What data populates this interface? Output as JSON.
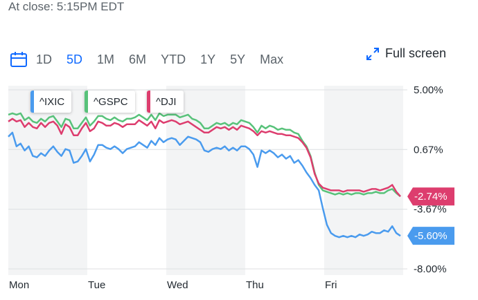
{
  "header": {
    "at_close": "At close: 5:15PM EDT"
  },
  "toolbar": {
    "calendar_icon": "calendar-icon",
    "ranges": [
      "1D",
      "5D",
      "1M",
      "6M",
      "YTD",
      "1Y",
      "5Y",
      "Max"
    ],
    "active_range": "5D",
    "fullscreen_label": "Full screen",
    "fullscreen_icon": "expand-icon"
  },
  "colors": {
    "ixic": "#4a9bee",
    "gspc": "#58c27a",
    "dji": "#dd3d6e",
    "active": "#0f69ff"
  },
  "chart_data": {
    "type": "line",
    "x_labels": [
      "Mon",
      "Tue",
      "Wed",
      "Thu",
      "Fri"
    ],
    "y_ticks": [
      "5.00%",
      "0.67%",
      "-3.67%",
      "-8.00%"
    ],
    "ylim": [
      -8.0,
      5.0
    ],
    "grid": true,
    "legend_position": "top-left",
    "series": [
      {
        "name": "^IXIC",
        "last_label": "-5.60%",
        "values": [
          1.6,
          1.9,
          0.9,
          1.1,
          0.6,
          0.9,
          0.2,
          0.1,
          0.4,
          0.2,
          0.6,
          0.9,
          0.5,
          0.2,
          0.7,
          0.6,
          -0.3,
          -0.2,
          0.2,
          0.7,
          -0.2,
          0.3,
          1.0,
          1.0,
          0.8,
          0.7,
          0.9,
          0.7,
          0.4,
          0.7,
          0.8,
          0.9,
          1.2,
          1.0,
          0.8,
          1.3,
          1.0,
          1.5,
          1.2,
          1.4,
          1.5,
          1.4,
          1.0,
          1.3,
          1.6,
          1.5,
          1.4,
          1.2,
          0.6,
          0.5,
          0.7,
          0.8,
          0.7,
          0.9,
          0.6,
          0.8,
          0.6,
          0.9,
          0.9,
          0.7,
          0.3,
          -0.6,
          0.6,
          0.4,
          0.6,
          0.4,
          0.1,
          0.3,
          0.0,
          0.2,
          -0.3,
          -0.1,
          -0.5,
          -1.0,
          -1.4,
          -1.9,
          -2.3,
          -3.6,
          -4.8,
          -5.4,
          -5.6,
          -5.7,
          -5.6,
          -5.7,
          -5.6,
          -5.7,
          -5.5,
          -5.6,
          -5.5,
          -5.3,
          -5.4,
          -5.4,
          -5.2,
          -5.3,
          -4.9,
          -5.4,
          -5.6
        ]
      },
      {
        "name": "^GSPC",
        "last_label": "-2.74%",
        "values": [
          3.2,
          3.3,
          3.2,
          3.3,
          2.8,
          3.0,
          2.7,
          2.6,
          2.9,
          2.7,
          3.0,
          3.1,
          2.7,
          2.3,
          2.9,
          2.8,
          2.2,
          2.2,
          2.6,
          3.0,
          2.4,
          2.7,
          3.1,
          3.1,
          2.9,
          2.8,
          3.0,
          2.8,
          2.7,
          2.9,
          2.9,
          3.0,
          3.2,
          3.0,
          2.8,
          3.2,
          2.8,
          3.3,
          3.1,
          3.2,
          3.2,
          3.2,
          3.0,
          3.1,
          3.2,
          2.9,
          2.8,
          2.6,
          2.2,
          2.2,
          2.4,
          2.6,
          2.5,
          2.6,
          2.4,
          2.6,
          2.5,
          2.8,
          2.7,
          2.6,
          2.3,
          1.9,
          2.4,
          2.2,
          2.4,
          2.3,
          2.1,
          2.2,
          2.1,
          2.1,
          1.9,
          1.8,
          1.3,
          0.9,
          0.2,
          -1.0,
          -1.9,
          -2.3,
          -2.4,
          -2.5,
          -2.6,
          -2.5,
          -2.6,
          -2.5,
          -2.6,
          -2.5,
          -2.5,
          -2.6,
          -2.5,
          -2.5,
          -2.4,
          -2.5,
          -2.5,
          -2.3,
          -2.2,
          -2.5,
          -2.74
        ]
      },
      {
        "name": "^DJI",
        "last_label": "-2.74%",
        "values": [
          2.7,
          2.9,
          2.7,
          2.8,
          2.3,
          2.6,
          2.3,
          2.2,
          2.6,
          2.3,
          2.6,
          2.7,
          2.4,
          1.8,
          2.5,
          2.3,
          1.7,
          1.7,
          2.2,
          2.6,
          2.0,
          2.2,
          2.7,
          2.6,
          2.4,
          2.4,
          2.6,
          2.5,
          2.3,
          2.5,
          2.5,
          2.5,
          2.8,
          2.6,
          2.4,
          2.7,
          2.2,
          2.8,
          2.6,
          2.7,
          2.8,
          2.7,
          2.5,
          2.6,
          2.7,
          2.5,
          2.3,
          2.1,
          1.9,
          1.9,
          2.1,
          2.3,
          2.2,
          2.3,
          2.1,
          2.3,
          2.1,
          2.4,
          2.3,
          2.2,
          2.0,
          1.7,
          2.0,
          1.9,
          2.0,
          1.9,
          1.8,
          1.8,
          1.7,
          1.7,
          1.6,
          1.5,
          1.2,
          0.8,
          0.1,
          -1.1,
          -1.8,
          -2.1,
          -2.2,
          -2.3,
          -2.3,
          -2.3,
          -2.4,
          -2.3,
          -2.3,
          -2.3,
          -2.3,
          -2.4,
          -2.3,
          -2.2,
          -2.2,
          -2.3,
          -2.2,
          -2.1,
          -1.9,
          -2.4,
          -2.74
        ]
      }
    ]
  }
}
